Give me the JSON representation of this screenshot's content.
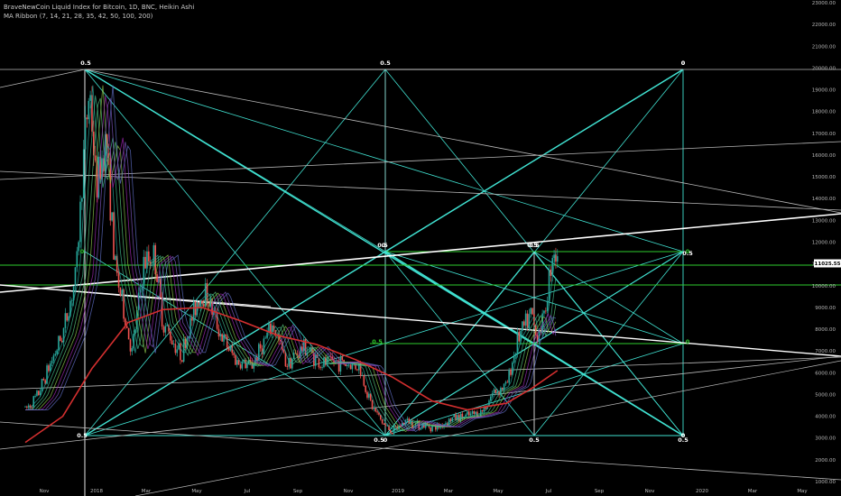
{
  "legend": {
    "symbol_line": "BraveNewCoin Liquid Index for Bitcoin, 1D, BNC, Heikin Ashi",
    "indicator_line": "MA Ribbon (7, 14, 21, 28, 35, 42, 50, 100, 200)"
  },
  "colors": {
    "background": "#000000",
    "cyan": "#40e0d0",
    "green": "#2ecc2e",
    "white": "#ffffff",
    "grey": "#b8b8b8",
    "candle_up": "#26a69a",
    "candle_down": "#ef5350",
    "ma_200": "#d32f2f",
    "price_badge": "#ffffff"
  },
  "chart_data": {
    "type": "line",
    "title": "BraveNewCoin Liquid Index for Bitcoin, 1D, BNC, Heikin Ashi",
    "y_scale": "linear",
    "ylim": [
      1000,
      23000
    ],
    "y_ticks": [
      "23000.00",
      "22000.00",
      "21000.00",
      "20000.00",
      "19000.00",
      "18000.00",
      "17000.00",
      "16000.00",
      "15000.00",
      "14000.00",
      "13000.00",
      "12000.00",
      "11000.00",
      "10000.00",
      "9000.00",
      "8000.00",
      "7000.00",
      "6000.00",
      "5000.00",
      "4000.00",
      "3000.00",
      "2000.00",
      "1000.00"
    ],
    "x_ticks": [
      "Nov",
      "2018",
      "Mar",
      "May",
      "Jul",
      "Sep",
      "Nov",
      "2019",
      "Mar",
      "May",
      "Jul",
      "Sep",
      "Nov",
      "2020",
      "Mar",
      "May"
    ],
    "last_price": "11025.55",
    "series": [
      {
        "name": "Price",
        "x": [
          "2017-10-01",
          "2017-10-15",
          "2017-11-01",
          "2017-11-15",
          "2017-12-01",
          "2017-12-10",
          "2017-12-17",
          "2017-12-25",
          "2018-01-06",
          "2018-01-16",
          "2018-02-06",
          "2018-02-20",
          "2018-03-05",
          "2018-03-15",
          "2018-04-06",
          "2018-04-25",
          "2018-05-05",
          "2018-05-25",
          "2018-06-12",
          "2018-06-29",
          "2018-07-25",
          "2018-08-10",
          "2018-09-01",
          "2018-09-20",
          "2018-10-10",
          "2018-11-05",
          "2018-11-20",
          "2018-12-05",
          "2018-12-15",
          "2019-01-01",
          "2019-01-15",
          "2019-02-07",
          "2019-02-25",
          "2019-03-15",
          "2019-04-01",
          "2019-04-15",
          "2019-05-01",
          "2019-05-14",
          "2019-05-31",
          "2019-06-05",
          "2019-06-15",
          "2019-06-26",
          "2019-07-01"
        ],
        "values": [
          4300,
          4900,
          6500,
          7800,
          10500,
          16000,
          19200,
          14500,
          16800,
          11000,
          6900,
          11000,
          11400,
          8300,
          6800,
          9300,
          9700,
          7600,
          6500,
          6300,
          8200,
          6400,
          7200,
          6400,
          6500,
          6300,
          4500,
          3600,
          3300,
          3800,
          3600,
          3500,
          3900,
          4000,
          4200,
          5100,
          5400,
          7500,
          8700,
          7700,
          8500,
          11900,
          11025
        ]
      },
      {
        "name": "MA 200",
        "x": [
          "2017-10-01",
          "2017-11-15",
          "2017-12-20",
          "2018-02-01",
          "2018-03-15",
          "2018-05-01",
          "2018-06-15",
          "2018-08-01",
          "2018-09-15",
          "2018-11-01",
          "2018-12-15",
          "2019-02-01",
          "2019-03-15",
          "2019-05-01",
          "2019-06-01",
          "2019-07-01"
        ],
        "values": [
          2800,
          4000,
          6200,
          8300,
          8900,
          9000,
          8400,
          7700,
          7300,
          6600,
          5800,
          4700,
          4300,
          4600,
          5300,
          6100
        ]
      }
    ],
    "horizontal_levels": [
      20000,
      11300,
      10000,
      7400,
      3100
    ],
    "gann_boxes": [
      {
        "x_range": [
          "2017-12-17",
          "2019-12-15"
        ],
        "y_range": [
          3100,
          20000
        ]
      },
      {
        "x_range": [
          "2018-12-15",
          "2019-12-15"
        ],
        "y_range": [
          3100,
          11300
        ]
      }
    ],
    "annotations": [
      "0.5",
      "0.5",
      "0",
      "0",
      "0.5",
      "0",
      "0.5",
      "0",
      "0.5",
      "0",
      "0.5",
      "0",
      "0.5",
      "0",
      "0.5",
      "0.5",
      "0.5",
      "0",
      "0.5",
      "0"
    ]
  }
}
